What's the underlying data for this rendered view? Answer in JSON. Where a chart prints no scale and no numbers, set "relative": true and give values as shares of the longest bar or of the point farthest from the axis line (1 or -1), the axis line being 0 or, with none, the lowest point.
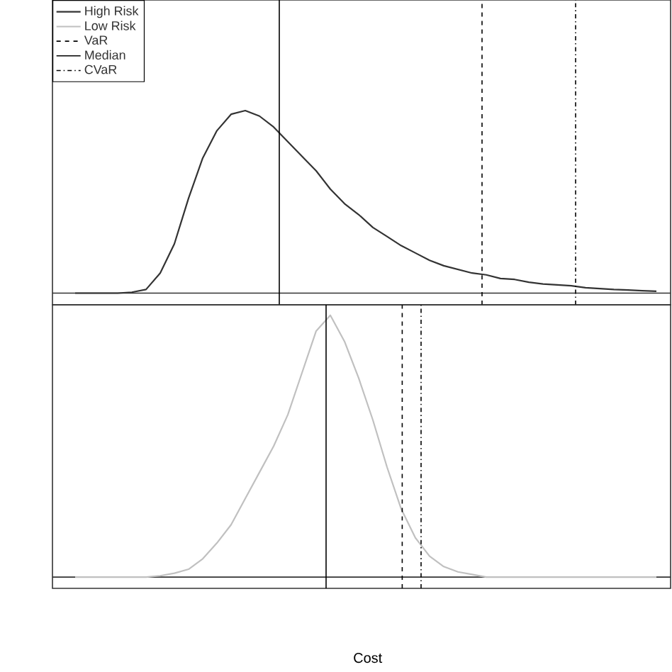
{
  "chart_data": [
    {
      "type": "line",
      "relative": true,
      "categories": [
        null,
        null,
        null,
        null,
        null,
        null,
        null,
        null,
        null,
        null,
        null,
        null,
        null,
        null,
        null,
        null,
        null,
        null,
        null,
        null,
        null,
        null,
        null,
        null,
        null,
        null,
        null,
        null,
        null,
        null,
        null,
        null,
        null,
        null,
        null,
        null,
        null,
        null,
        null,
        null,
        null,
        null
      ],
      "series": [
        {
          "name": "High Risk",
          "color": "#333333",
          "values": [
            0,
            0,
            0,
            0,
            0.005,
            0.02,
            0.11,
            0.27,
            0.52,
            0.74,
            0.89,
            0.98,
            1.0,
            0.97,
            0.91,
            0.83,
            0.75,
            0.67,
            0.57,
            0.49,
            0.43,
            0.36,
            0.31,
            0.26,
            0.22,
            0.18,
            0.15,
            0.13,
            0.11,
            0.1,
            0.08,
            0.075,
            0.06,
            0.05,
            0.045,
            0.04,
            0.03,
            0.025,
            0.02,
            0.017,
            0.013,
            0.01
          ]
        }
      ],
      "ref_lines": [
        {
          "axis": "x",
          "label": "VaR",
          "line_style": "dashed",
          "color": "#000000"
        },
        {
          "axis": "x",
          "label": "Median",
          "line_style": "solid",
          "color": "#000000"
        },
        {
          "axis": "x",
          "label": "CVaR",
          "line_style": "dashdot",
          "color": "#000000"
        }
      ],
      "legend": "top left",
      "marker": "none"
    },
    {
      "type": "line",
      "relative": true,
      "xlabel": "Cost",
      "categories": [
        null,
        null,
        null,
        null,
        null,
        null,
        null,
        null,
        null,
        null,
        null,
        null,
        null,
        null,
        null,
        null,
        null,
        null,
        null,
        null,
        null,
        null,
        null,
        null,
        null,
        null,
        null,
        null,
        null,
        null,
        null,
        null,
        null,
        null,
        null,
        null,
        null,
        null,
        null,
        null,
        null,
        null
      ],
      "series": [
        {
          "name": "Low Risk",
          "color": "#c0c0c0",
          "values": [
            0,
            0,
            0,
            0,
            0,
            0,
            0.005,
            0.015,
            0.03,
            0.07,
            0.13,
            0.2,
            0.3,
            0.4,
            0.5,
            0.62,
            0.78,
            0.94,
            1.0,
            0.9,
            0.76,
            0.6,
            0.42,
            0.26,
            0.15,
            0.08,
            0.04,
            0.02,
            0.01,
            0,
            0,
            0,
            0,
            0,
            0,
            0,
            0,
            0,
            0,
            0,
            0,
            0
          ]
        }
      ],
      "marker": "none"
    }
  ]
}
